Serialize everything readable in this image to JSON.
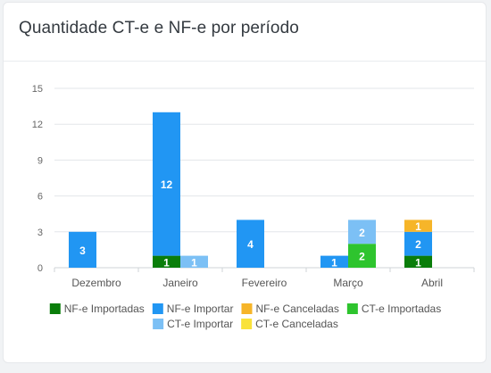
{
  "card": {
    "title": "Quantidade CT-e e NF-e por período"
  },
  "chart_data": {
    "type": "bar",
    "stacked": true,
    "title": "Quantidade CT-e e NF-e por período",
    "categories": [
      "Dezembro",
      "Janeiro",
      "Fevereiro",
      "Março",
      "Abril"
    ],
    "ylim": [
      0,
      15
    ],
    "yticks": [
      0,
      3,
      6,
      9,
      12,
      15
    ],
    "grid": true,
    "legend_position": "bottom",
    "stacks": [
      {
        "name": "NF-e",
        "series": [
          {
            "name": "NF-e Importadas",
            "color": "#0a7d0a",
            "values": [
              0,
              1,
              0,
              0,
              1
            ]
          },
          {
            "name": "NF-e Importar",
            "color": "#2196f3",
            "values": [
              3,
              12,
              4,
              1,
              2
            ]
          },
          {
            "name": "NF-e Canceladas",
            "color": "#f6b529",
            "values": [
              0,
              0,
              0,
              0,
              1
            ]
          }
        ]
      },
      {
        "name": "CT-e",
        "series": [
          {
            "name": "CT-e Importadas",
            "color": "#2ec42e",
            "values": [
              0,
              0,
              0,
              2,
              0
            ]
          },
          {
            "name": "CT-e Importar",
            "color": "#7cc0f5",
            "values": [
              0,
              1,
              0,
              2,
              0
            ]
          },
          {
            "name": "CT-e Canceladas",
            "color": "#f9e23b",
            "values": [
              0,
              0,
              0,
              0,
              0
            ]
          }
        ]
      }
    ]
  }
}
